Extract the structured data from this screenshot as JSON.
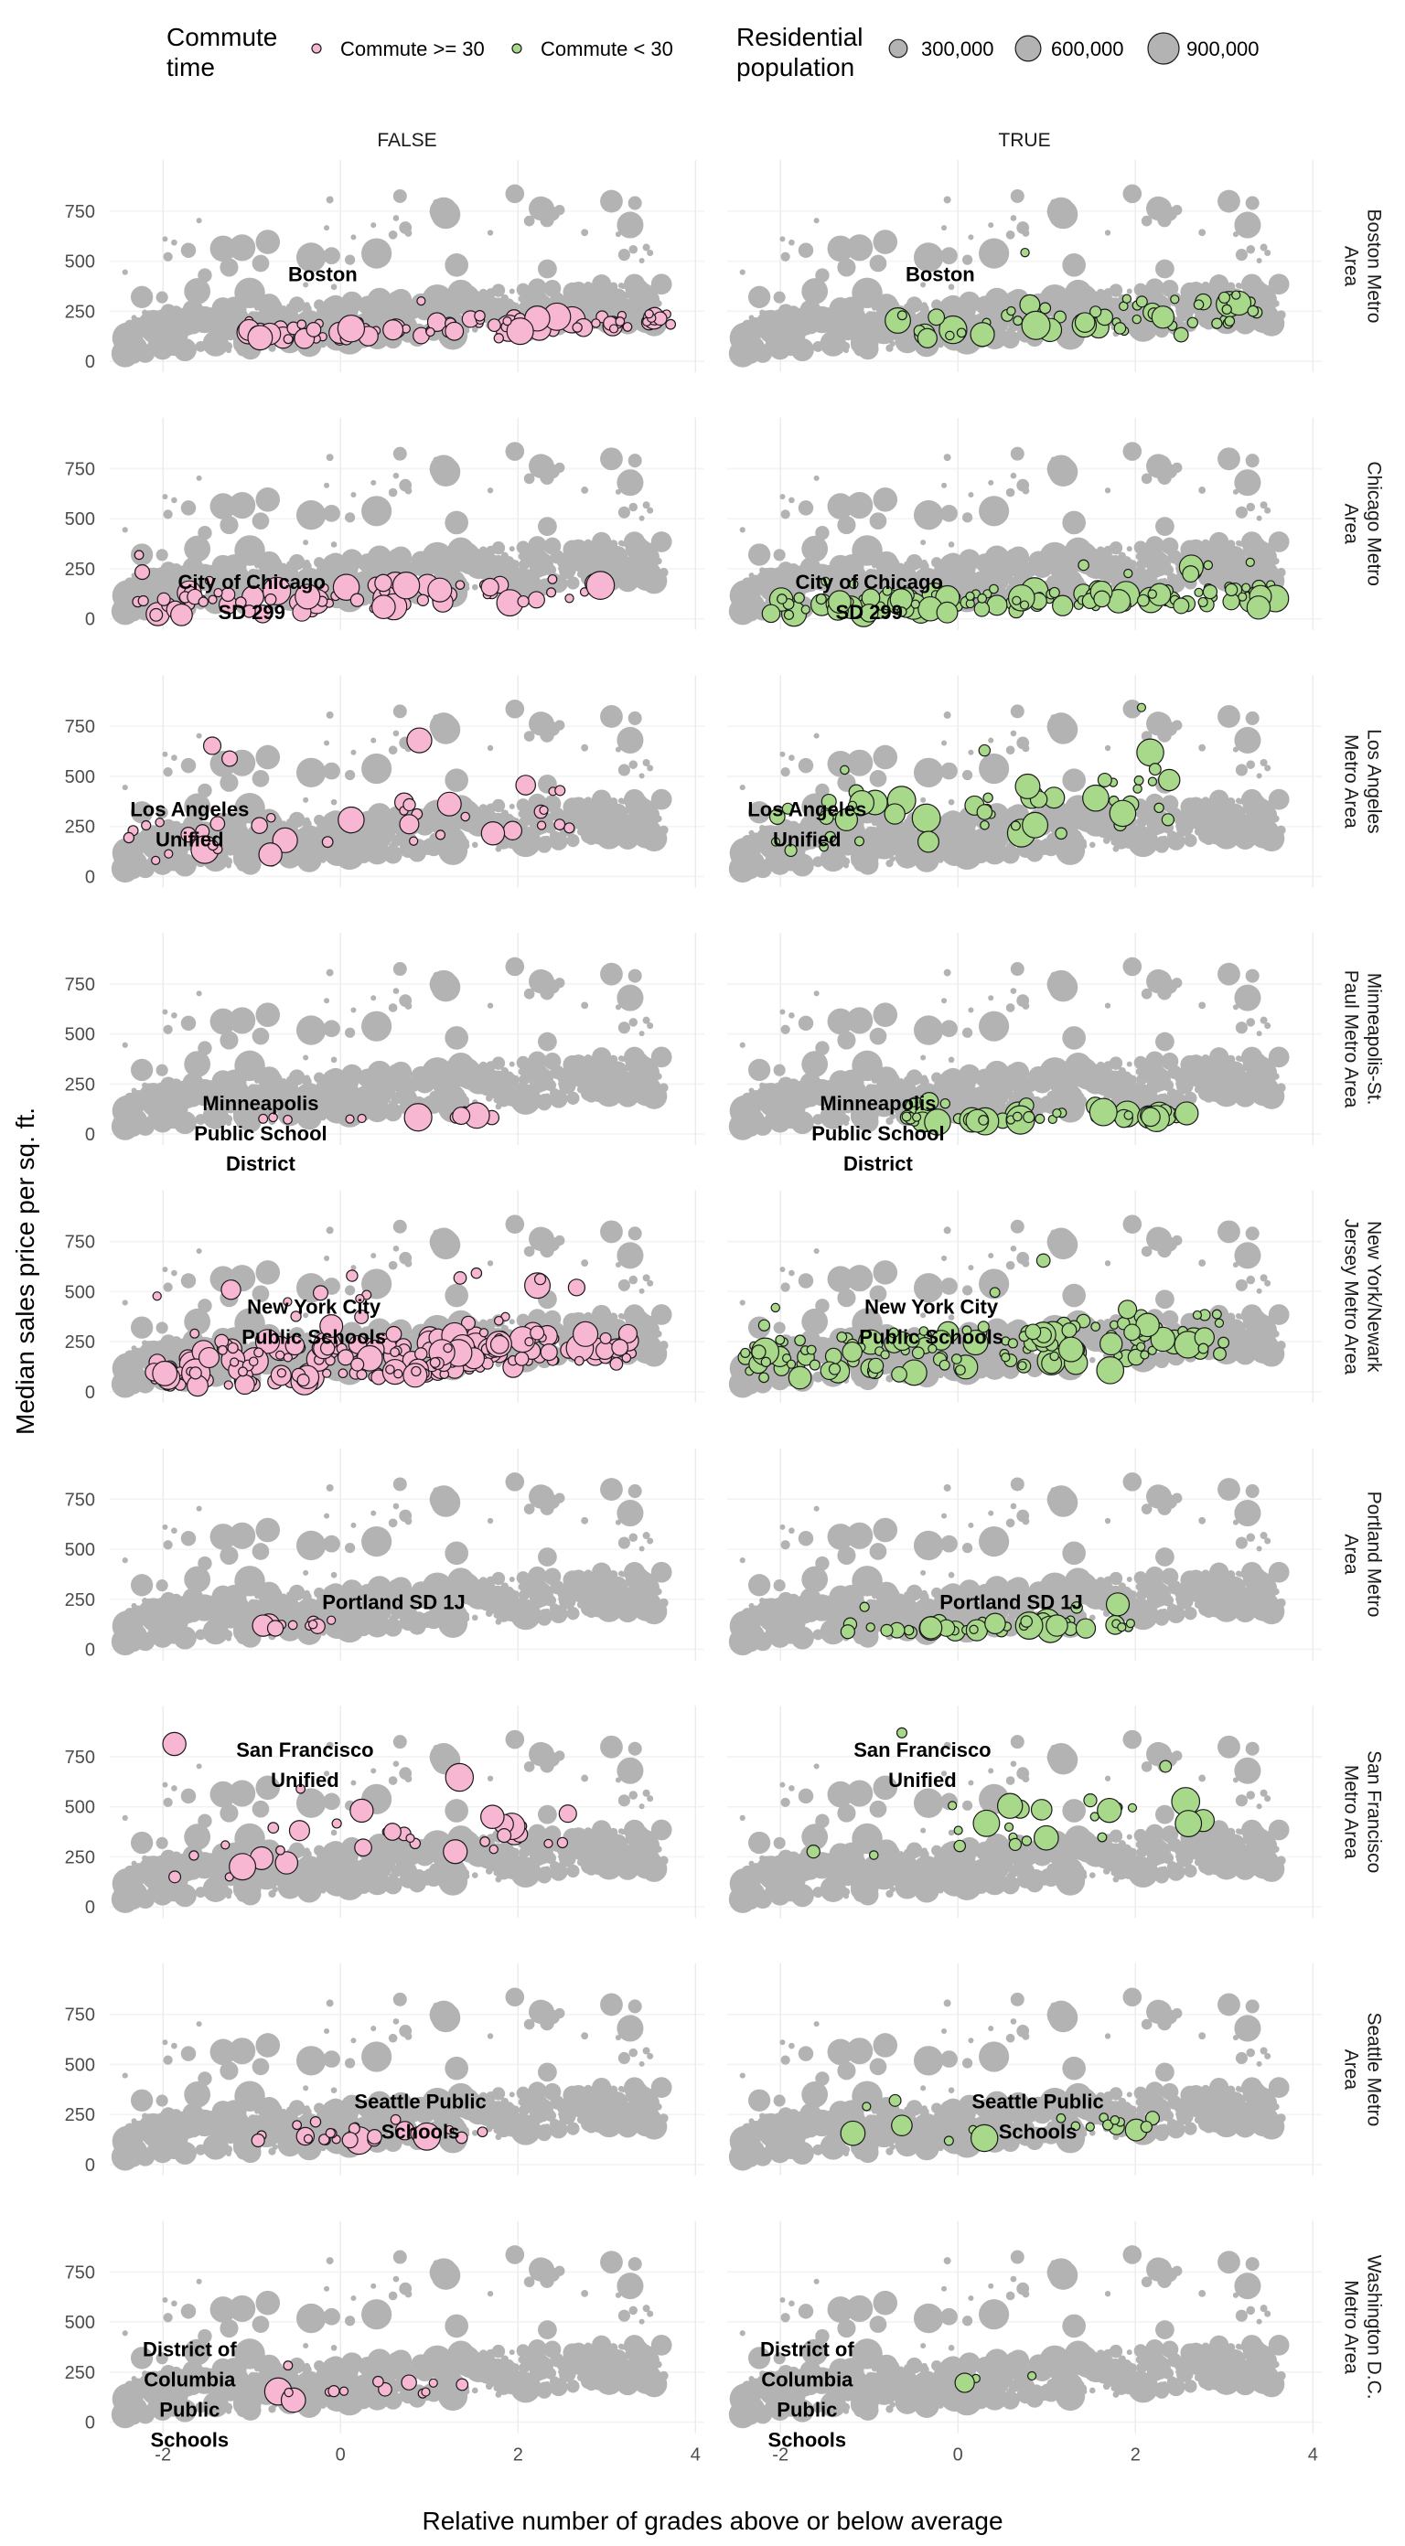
{
  "chart_data": {
    "type": "scatter",
    "xlabel": "Relative number of grades above or below average",
    "ylabel": "Median sales price per sq. ft.",
    "xlim": [
      -2.6,
      4.1
    ],
    "ylim": [
      0,
      950
    ],
    "x_ticks": [
      -2,
      0,
      2,
      4
    ],
    "y_ticks": [
      0,
      250,
      500,
      750
    ],
    "grid": true,
    "columns": [
      "FALSE",
      "TRUE"
    ],
    "rows": [
      "Boston Metro Area",
      "Chicago Metro Area",
      "Los Angeles Metro Area",
      "Minneapolis-St. Paul Metro Area",
      "New York/Newark Jersey Metro Area",
      "Portland Metro Area",
      "San Francisco Metro Area",
      "Seattle Metro Area",
      "Washington D.C. Metro Area"
    ],
    "row_label_lines": [
      [
        "Boston Metro",
        "Area"
      ],
      [
        "Chicago Metro",
        "Area"
      ],
      [
        "Los Angeles",
        "Metro Area"
      ],
      [
        "Minneapolis-St.",
        "Paul Metro Area"
      ],
      [
        "New York/Newark",
        "Jersey Metro Area"
      ],
      [
        "Portland Metro",
        "Area"
      ],
      [
        "San Francisco",
        "Metro Area"
      ],
      [
        "Seattle Metro",
        "Area"
      ],
      [
        "Washington D.C.",
        "Metro Area"
      ]
    ],
    "district_labels": [
      {
        "lines": [
          "Boston"
        ],
        "x": -0.2,
        "y": 400
      },
      {
        "lines": [
          "City of Chicago",
          "SD 299"
        ],
        "x": -1.0,
        "y": 150
      },
      {
        "lines": [
          "Los Angeles",
          "Unified"
        ],
        "x": -1.7,
        "y": 300
      },
      {
        "lines": [
          "Minneapolis",
          "Public School",
          "District"
        ],
        "x": -0.9,
        "y": 120
      },
      {
        "lines": [
          "New York City",
          "Public Schools"
        ],
        "x": -0.3,
        "y": 390
      },
      {
        "lines": [
          "Portland SD 1J"
        ],
        "x": 0.6,
        "y": 200
      },
      {
        "lines": [
          "San Francisco",
          "Unified"
        ],
        "x": -0.4,
        "y": 750
      },
      {
        "lines": [
          "Seattle Public",
          "Schools"
        ],
        "x": 0.9,
        "y": 280
      },
      {
        "lines": [
          "District of",
          "Columbia",
          "Public",
          "Schools"
        ],
        "x": -1.7,
        "y": 330
      }
    ],
    "legend": {
      "color_title_lines": [
        "Commute",
        "time"
      ],
      "color_entries": [
        {
          "label": "Commute >= 30",
          "color": "#f7b6d2"
        },
        {
          "label": "Commute < 30",
          "color": "#a8d98b"
        }
      ],
      "size_title_lines": [
        "Residential",
        "population"
      ],
      "size_entries": [
        {
          "label": "300,000",
          "value": 300000
        },
        {
          "label": "600,000",
          "value": 600000
        },
        {
          "label": "900,000",
          "value": 900000
        }
      ]
    },
    "colors": {
      "background_points": "#b3b3b3",
      "commute_ge_30": "#f7b6d2",
      "commute_lt_30": "#a8d98b",
      "outline": "#1a1a1a",
      "grid": "#ebebeb"
    },
    "series": [
      {
        "name": "Commute >= 30",
        "row": 0,
        "column": 0,
        "x_range": [
          -1.1,
          3.8
        ],
        "y_range": [
          110,
          350
        ],
        "n": 90
      },
      {
        "name": "Commute < 30",
        "row": 0,
        "column": 1,
        "x_range": [
          -0.7,
          3.4
        ],
        "y_range": [
          110,
          560
        ],
        "n": 60
      },
      {
        "name": "Commute >= 30",
        "row": 1,
        "column": 0,
        "x_range": [
          -2.3,
          3.0
        ],
        "y_range": [
          20,
          370
        ],
        "n": 80
      },
      {
        "name": "Commute < 30",
        "row": 1,
        "column": 1,
        "x_range": [
          -2.3,
          3.6
        ],
        "y_range": [
          20,
          300
        ],
        "n": 130
      },
      {
        "name": "Commute >= 30",
        "row": 2,
        "column": 0,
        "x_range": [
          -2.4,
          2.6
        ],
        "y_range": [
          80,
          740
        ],
        "n": 40
      },
      {
        "name": "Commute < 30",
        "row": 2,
        "column": 1,
        "x_range": [
          -2.2,
          2.8
        ],
        "y_range": [
          130,
          880
        ],
        "n": 55
      },
      {
        "name": "Commute >= 30",
        "row": 3,
        "column": 0,
        "x_range": [
          -1.1,
          1.8
        ],
        "y_range": [
          70,
          120
        ],
        "n": 15
      },
      {
        "name": "Commute < 30",
        "row": 3,
        "column": 1,
        "x_range": [
          -0.6,
          2.6
        ],
        "y_range": [
          60,
          170
        ],
        "n": 60
      },
      {
        "name": "Commute >= 30",
        "row": 4,
        "column": 0,
        "x_range": [
          -2.2,
          3.3
        ],
        "y_range": [
          30,
          600
        ],
        "n": 230
      },
      {
        "name": "Commute < 30",
        "row": 4,
        "column": 1,
        "x_range": [
          -2.4,
          3.0
        ],
        "y_range": [
          70,
          680
        ],
        "n": 140
      },
      {
        "name": "Commute >= 30",
        "row": 5,
        "column": 0,
        "x_range": [
          -1.0,
          0.0
        ],
        "y_range": [
          100,
          190
        ],
        "n": 14
      },
      {
        "name": "Commute < 30",
        "row": 5,
        "column": 1,
        "x_range": [
          -1.3,
          2.0
        ],
        "y_range": [
          80,
          230
        ],
        "n": 45
      },
      {
        "name": "Commute >= 30",
        "row": 6,
        "column": 0,
        "x_range": [
          -1.9,
          2.6
        ],
        "y_range": [
          150,
          920
        ],
        "n": 35
      },
      {
        "name": "Commute < 30",
        "row": 6,
        "column": 1,
        "x_range": [
          -2.1,
          3.0
        ],
        "y_range": [
          250,
          900
        ],
        "n": 25
      },
      {
        "name": "Commute >= 30",
        "row": 7,
        "column": 0,
        "x_range": [
          -1.0,
          1.6
        ],
        "y_range": [
          110,
          240
        ],
        "n": 30
      },
      {
        "name": "Commute < 30",
        "row": 7,
        "column": 1,
        "x_range": [
          -1.2,
          2.9
        ],
        "y_range": [
          110,
          380
        ],
        "n": 20
      },
      {
        "name": "Commute >= 30",
        "row": 8,
        "column": 0,
        "x_range": [
          -1.0,
          1.4
        ],
        "y_range": [
          110,
          320
        ],
        "n": 14
      },
      {
        "name": "Commute < 30",
        "row": 8,
        "column": 1,
        "x_range": [
          -0.8,
          1.4
        ],
        "y_range": [
          130,
          370
        ],
        "n": 3
      }
    ]
  }
}
